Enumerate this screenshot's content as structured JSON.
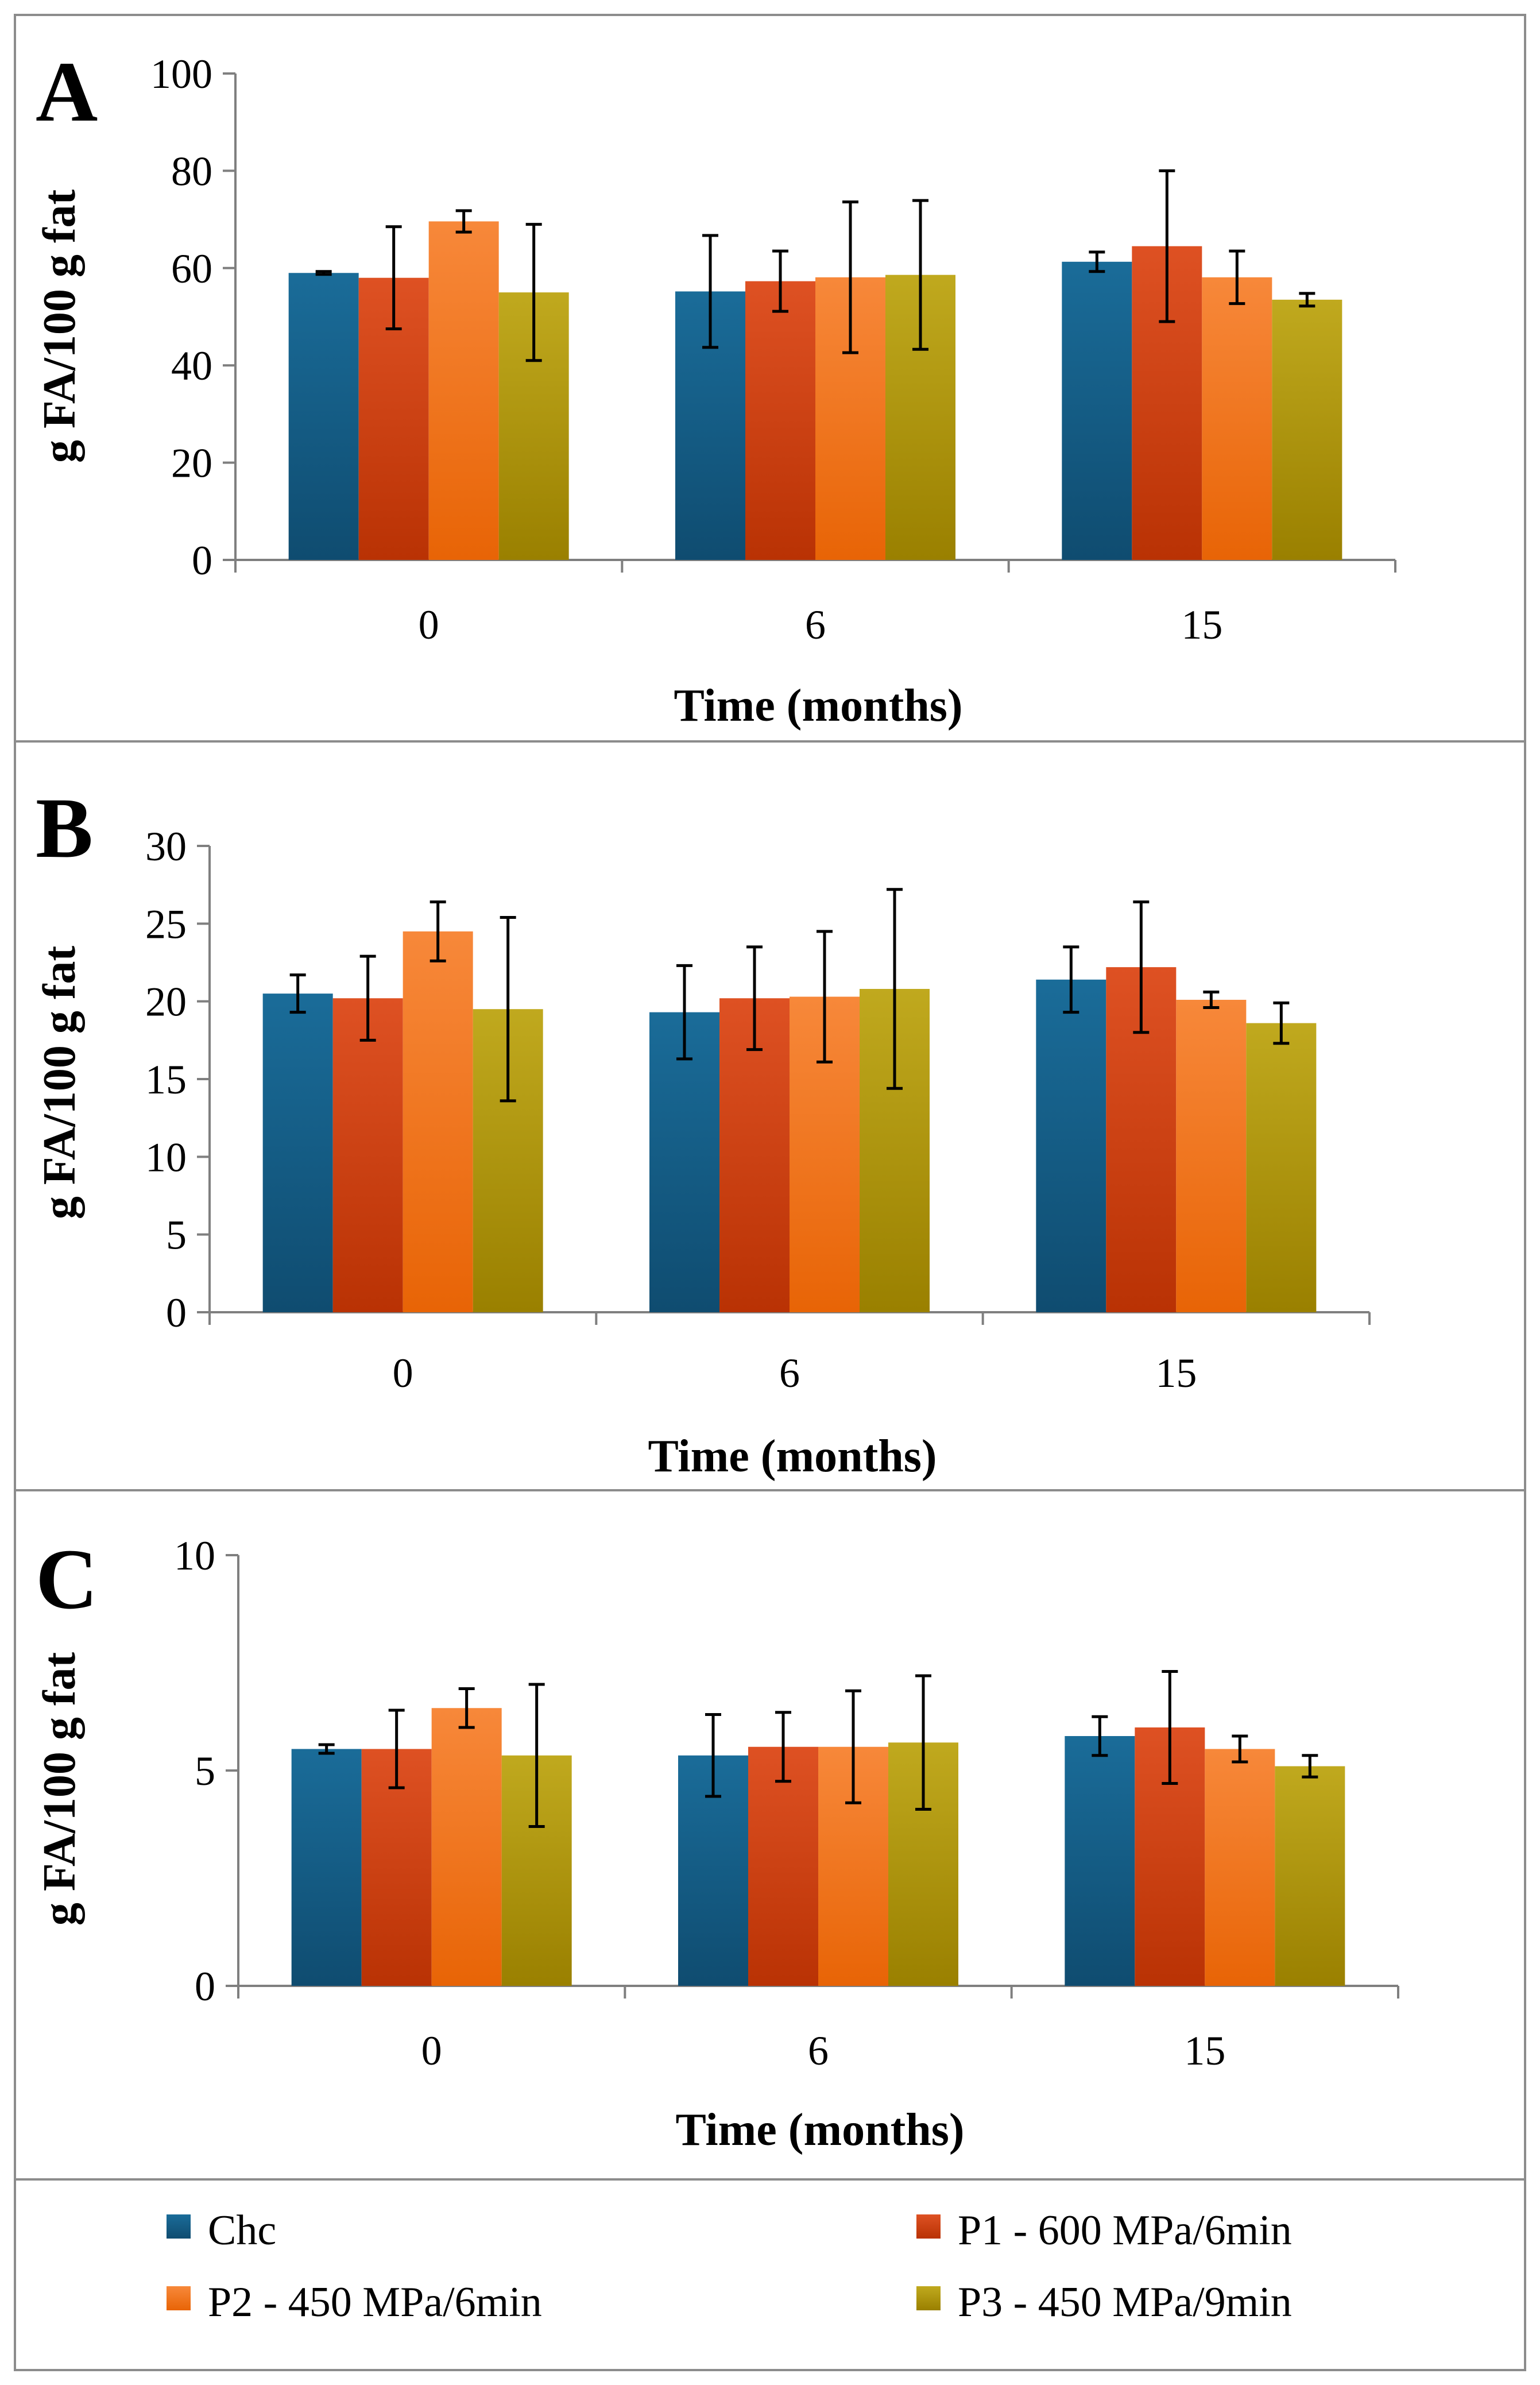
{
  "legend": [
    {
      "name": "Chc",
      "color": "#17608a"
    },
    {
      "name": "P1 - 600 MPa/6min",
      "color": "#d4400c"
    },
    {
      "name": "P2 - 450 MPa/6min",
      "color": "#f07a1e"
    },
    {
      "name": "P3 - 450 MPa/9min",
      "color": "#b39a05"
    }
  ],
  "chart_data": [
    {
      "type": "bar",
      "panel": "A",
      "categories": [
        "0",
        "6",
        "15"
      ],
      "xlabel": "Time (months)",
      "ylabel": "g FA/100 g fat",
      "ylim": [
        0,
        100
      ],
      "yticks": [
        0,
        20,
        40,
        60,
        80,
        100
      ],
      "error_bars": true,
      "series": [
        {
          "name": "Chc",
          "values": [
            59.0,
            55.2,
            61.3
          ],
          "errors": [
            0.3,
            11.5,
            2.0
          ]
        },
        {
          "name": "P1 - 600 MPa/6min",
          "values": [
            58.0,
            57.3,
            64.5
          ],
          "errors": [
            10.5,
            6.2,
            15.5
          ]
        },
        {
          "name": "P2 - 450 MPa/6min",
          "values": [
            69.6,
            58.1,
            58.1
          ],
          "errors": [
            2.2,
            15.5,
            5.4
          ]
        },
        {
          "name": "P3 - 450 MPa/9min",
          "values": [
            55.0,
            58.6,
            53.5
          ],
          "errors": [
            14.0,
            15.3,
            1.3
          ]
        }
      ]
    },
    {
      "type": "bar",
      "panel": "B",
      "categories": [
        "0",
        "6",
        "15"
      ],
      "xlabel": "Time (months)",
      "ylabel": "g FA/100 g fat",
      "ylim": [
        0,
        30
      ],
      "yticks": [
        0,
        5,
        10,
        15,
        20,
        25,
        30
      ],
      "error_bars": true,
      "series": [
        {
          "name": "Chc",
          "values": [
            20.5,
            19.3,
            21.4
          ],
          "errors": [
            1.2,
            3.0,
            2.1
          ]
        },
        {
          "name": "P1 - 600 MPa/6min",
          "values": [
            20.2,
            20.2,
            22.2
          ],
          "errors": [
            2.7,
            3.3,
            4.2
          ]
        },
        {
          "name": "P2 - 450 MPa/6min",
          "values": [
            24.5,
            20.3,
            20.1
          ],
          "errors": [
            1.9,
            4.2,
            0.5
          ]
        },
        {
          "name": "P3 - 450 MPa/9min",
          "values": [
            19.5,
            20.8,
            18.6
          ],
          "errors": [
            5.9,
            6.4,
            1.3
          ]
        }
      ]
    },
    {
      "type": "bar",
      "panel": "C",
      "categories": [
        "0",
        "6",
        "15"
      ],
      "xlabel": "Time (months)",
      "ylabel": "g FA/100 g fat",
      "ylim": [
        0,
        10
      ],
      "yticks": [
        0,
        5,
        10
      ],
      "error_bars": true,
      "series": [
        {
          "name": "Chc",
          "values": [
            5.5,
            5.35,
            5.8
          ],
          "errors": [
            0.1,
            0.95,
            0.45
          ]
        },
        {
          "name": "P1 - 600 MPa/6min",
          "values": [
            5.5,
            5.55,
            6.0
          ],
          "errors": [
            0.9,
            0.8,
            1.3
          ]
        },
        {
          "name": "P2 - 450 MPa/6min",
          "values": [
            6.45,
            5.55,
            5.5
          ],
          "errors": [
            0.45,
            1.3,
            0.3
          ]
        },
        {
          "name": "P3 - 450 MPa/9min",
          "values": [
            5.35,
            5.65,
            5.1
          ],
          "errors": [
            1.65,
            1.55,
            0.25
          ]
        }
      ]
    }
  ]
}
